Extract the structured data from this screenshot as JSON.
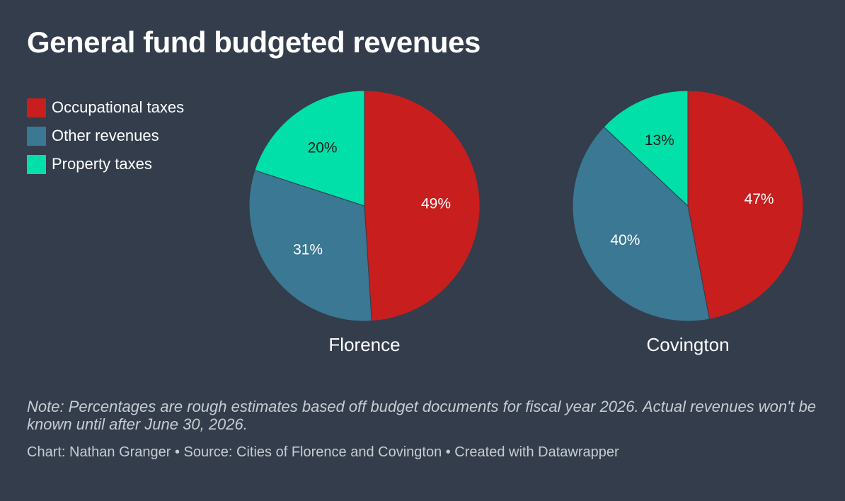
{
  "title": "General fund budgeted revenues",
  "legend": [
    {
      "label": "Occupational taxes",
      "color": "#c81e1e"
    },
    {
      "label": "Other revenues",
      "color": "#3a7894"
    },
    {
      "label": "Property taxes",
      "color": "#00e0a8"
    }
  ],
  "chart_data": [
    {
      "type": "pie",
      "title": "Florence",
      "slices": [
        {
          "name": "Occupational taxes",
          "value": 49,
          "label": "49%",
          "color": "#c81e1e",
          "label_color": "#ffffff"
        },
        {
          "name": "Other revenues",
          "value": 31,
          "label": "31%",
          "color": "#3a7894",
          "label_color": "#ffffff"
        },
        {
          "name": "Property taxes",
          "value": 20,
          "label": "20%",
          "color": "#00e0a8",
          "label_color": "#1a1a1a"
        }
      ]
    },
    {
      "type": "pie",
      "title": "Covington",
      "slices": [
        {
          "name": "Occupational taxes",
          "value": 47,
          "label": "47%",
          "color": "#c81e1e",
          "label_color": "#ffffff"
        },
        {
          "name": "Other revenues",
          "value": 40,
          "label": "40%",
          "color": "#3a7894",
          "label_color": "#ffffff"
        },
        {
          "name": "Property taxes",
          "value": 13,
          "label": "13%",
          "color": "#00e0a8",
          "label_color": "#1a1a1a"
        }
      ]
    }
  ],
  "note": "Note: Percentages are rough estimates based off budget documents for fiscal year 2026. Actual revenues won't be known until after June 30, 2026.",
  "footer": "Chart: Nathan Granger • Source: Cities of Florence and Covington • Created with Datawrapper"
}
